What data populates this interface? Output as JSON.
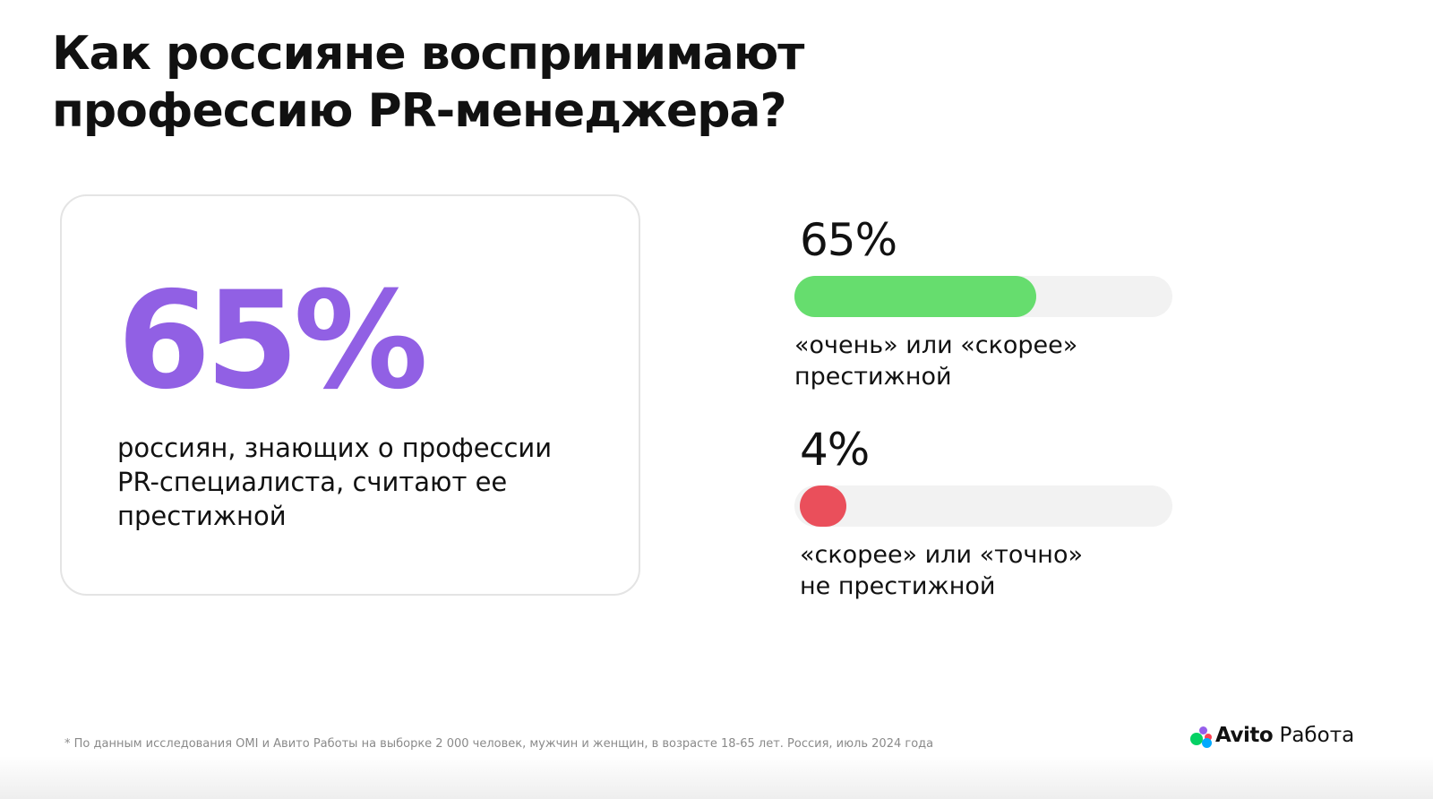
{
  "title": {
    "line1": "Как россияне воспринимают",
    "line2": "профессию PR-менеджера?"
  },
  "highlight": {
    "value": "65%",
    "text_line1": "россиян, знающих о профессии",
    "text_line2": "PR-специалиста, считают ее",
    "text_line3": "престижной",
    "color": "#9160e4"
  },
  "stats": [
    {
      "value": "65%",
      "fraction": 0.65,
      "bar_color": "#66dd6e",
      "label_line1": "«очень» или «скорее»",
      "label_line2": "престижной"
    },
    {
      "value": "4%",
      "fraction": 0.04,
      "bar_color": "#ea4f5b",
      "label_line1": "«скорее» или «точно»",
      "label_line2": "не престижной"
    }
  ],
  "footnote": "* По данным исследования OMI и Авито Работы на выборке 2 000 человек, мужчин и женщин, в возрасте 18-65 лет. Россия, июль 2024 года",
  "logo": {
    "brand": "Avito",
    "product": "Работа",
    "icon": "avito-dots-icon"
  }
}
